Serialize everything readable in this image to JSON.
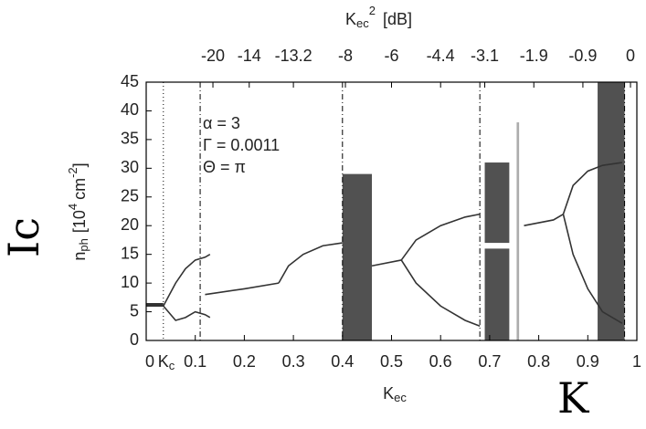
{
  "chart_data": {
    "type": "line",
    "x2label_parts": [
      "K",
      "ec",
      "2",
      "[dB]"
    ],
    "xlabel_parts": [
      "K",
      "ec"
    ],
    "ylabel_parts": [
      "n",
      "ph",
      "[10",
      "4",
      "cm",
      "-2",
      "]"
    ],
    "kc_label_parts": [
      "K",
      "c"
    ],
    "xlim": [
      0,
      1
    ],
    "ylim": [
      0,
      45
    ],
    "xticks": [
      0,
      0.1,
      0.2,
      0.3,
      0.4,
      0.5,
      0.6,
      0.7,
      0.8,
      0.9,
      1
    ],
    "yticks": [
      0,
      5,
      10,
      15,
      20,
      25,
      30,
      35,
      40,
      45
    ],
    "x2ticks": [
      {
        "value": 0.136,
        "label": "-20"
      },
      {
        "value": 0.21,
        "label": "-14"
      },
      {
        "value": 0.3,
        "label": "-13.2"
      },
      {
        "value": 0.406,
        "label": "-8"
      },
      {
        "value": 0.5,
        "label": "-6"
      },
      {
        "value": 0.6,
        "label": "-4.4"
      },
      {
        "value": 0.69,
        "label": "-3.1"
      },
      {
        "value": 0.79,
        "label": "-1.9"
      },
      {
        "value": 0.89,
        "label": "-0.9"
      },
      {
        "value": 0.987,
        "label": "0"
      }
    ],
    "vlines": [
      0.035,
      0.11,
      0.4,
      0.68,
      0.975
    ],
    "annotations": [
      "α = 3",
      "Γ = 0.0011",
      "Θ = π"
    ],
    "handwritten": [
      "Ic",
      "K"
    ],
    "color": "#333333",
    "series": [
      {
        "x": [
          0,
          0.035
        ],
        "values": [
          6.2,
          6.2
        ]
      },
      {
        "x": [
          0.035,
          0.06,
          0.08,
          0.1,
          0.12,
          0.13
        ],
        "values": [
          6,
          10,
          12.5,
          14,
          14.5,
          15
        ]
      },
      {
        "x": [
          0.035,
          0.06,
          0.08,
          0.1,
          0.12,
          0.13
        ],
        "values": [
          6,
          3.5,
          4,
          5,
          4.5,
          4
        ]
      },
      {
        "x": [
          0.12,
          0.2,
          0.27
        ],
        "values": [
          8,
          9,
          10
        ]
      },
      {
        "x": [
          0.27,
          0.29,
          0.32,
          0.36,
          0.4
        ],
        "values": [
          10,
          13,
          15,
          16.5,
          17
        ]
      },
      {
        "x": [
          0.46,
          0.52
        ],
        "values": [
          13,
          14
        ]
      },
      {
        "x": [
          0.52,
          0.55,
          0.6,
          0.65,
          0.68
        ],
        "values": [
          14,
          17.5,
          20,
          21.5,
          22
        ]
      },
      {
        "x": [
          0.52,
          0.55,
          0.6,
          0.65,
          0.68
        ],
        "values": [
          14,
          10,
          6,
          3.5,
          2.5
        ]
      },
      {
        "x": [
          0.77,
          0.83,
          0.85
        ],
        "values": [
          20,
          21,
          22
        ]
      },
      {
        "x": [
          0.85,
          0.87,
          0.9,
          0.93,
          0.97
        ],
        "values": [
          22,
          27,
          29.5,
          30.5,
          31
        ]
      },
      {
        "x": [
          0.85,
          0.87,
          0.9,
          0.93,
          0.97
        ],
        "values": [
          22,
          15,
          9,
          5,
          3
        ]
      }
    ],
    "regions": [
      {
        "x": [
          0.4,
          0.46
        ],
        "y": [
          0,
          29
        ]
      },
      {
        "x": [
          0.69,
          0.74
        ],
        "y": [
          17,
          31
        ]
      },
      {
        "x": [
          0.69,
          0.74
        ],
        "y": [
          0,
          16
        ]
      },
      {
        "x": [
          0.755,
          0.76
        ],
        "y": [
          0,
          38
        ]
      },
      {
        "x": [
          0.92,
          0.975
        ],
        "y": [
          0,
          45
        ]
      }
    ]
  }
}
